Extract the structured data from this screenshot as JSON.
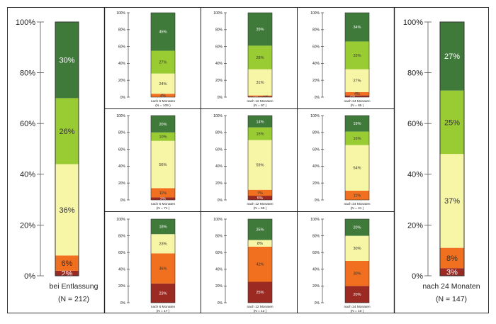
{
  "colors": {
    "dark_green": "#3f7a3b",
    "light_green": "#99cc33",
    "pale_yellow": "#f7f5a6",
    "orange": "#f07020",
    "dark_red": "#9a2a22",
    "frame": "#333333",
    "divider": "#222222",
    "label_dark": "#ffffff",
    "label_light": "#333333"
  },
  "chart_data": [
    {
      "id": "baseline",
      "type": "bar",
      "stacked": true,
      "y_ticks": [
        "0%",
        "20%",
        "40%",
        "60%",
        "80%",
        "100%"
      ],
      "ylim": [
        0,
        100
      ],
      "category_lines": [
        "bei Entlassung",
        "(N = 212)"
      ],
      "segments": [
        {
          "value": 2,
          "label": "2%",
          "color": "dark_red"
        },
        {
          "value": 6,
          "label": "6%",
          "color": "orange"
        },
        {
          "value": 36,
          "label": "36%",
          "color": "pale_yellow"
        },
        {
          "value": 26,
          "label": "26%",
          "color": "light_green"
        },
        {
          "value": 30,
          "label": "30%",
          "color": "dark_green"
        }
      ]
    },
    {
      "id": "r1c1",
      "type": "bar",
      "stacked": true,
      "y_ticks": [
        "0%",
        "20%",
        "40%",
        "60%",
        "80%",
        "100%"
      ],
      "ylim": [
        0,
        100
      ],
      "category_lines": [
        "nach 6 Monaten",
        "(N = 109 )"
      ],
      "segments": [
        {
          "value": 0,
          "label": "",
          "color": "dark_red"
        },
        {
          "value": 4,
          "label": "4%",
          "color": "orange"
        },
        {
          "value": 24,
          "label": "24%",
          "color": "pale_yellow"
        },
        {
          "value": 27,
          "label": "27%",
          "color": "light_green"
        },
        {
          "value": 45,
          "label": "45%",
          "color": "dark_green"
        }
      ]
    },
    {
      "id": "r1c2",
      "type": "bar",
      "stacked": true,
      "y_ticks": [
        "0%",
        "20%",
        "40%",
        "60%",
        "80%",
        "100%"
      ],
      "ylim": [
        0,
        100
      ],
      "category_lines": [
        "nach 12 Monaten",
        "(N = 97 )"
      ],
      "segments": [
        {
          "value": 1,
          "label": "1%",
          "color": "dark_red"
        },
        {
          "value": 1,
          "label": "1%",
          "color": "orange"
        },
        {
          "value": 31,
          "label": "31%",
          "color": "pale_yellow"
        },
        {
          "value": 28,
          "label": "28%",
          "color": "light_green"
        },
        {
          "value": 39,
          "label": "39%",
          "color": "dark_green"
        }
      ]
    },
    {
      "id": "r1c3",
      "type": "bar",
      "stacked": true,
      "y_ticks": [
        "0%",
        "20%",
        "40%",
        "60%",
        "80%",
        "100%"
      ],
      "ylim": [
        0,
        100
      ],
      "category_lines": [
        "nach 24 Monaten",
        "(N = 85 )"
      ],
      "segments": [
        {
          "value": 2,
          "label": "2%",
          "color": "dark_red"
        },
        {
          "value": 4,
          "label": "4%",
          "color": "orange"
        },
        {
          "value": 27,
          "label": "27%",
          "color": "pale_yellow"
        },
        {
          "value": 33,
          "label": "33%",
          "color": "light_green"
        },
        {
          "value": 34,
          "label": "34%",
          "color": "dark_green"
        }
      ]
    },
    {
      "id": "r2c1",
      "type": "bar",
      "stacked": true,
      "y_ticks": [
        "0%",
        "20%",
        "40%",
        "60%",
        "80%",
        "100%"
      ],
      "ylim": [
        0,
        100
      ],
      "category_lines": [
        "nach 6 Monaten",
        "(N = 71 )"
      ],
      "segments": [
        {
          "value": 3,
          "label": "3%",
          "color": "dark_red"
        },
        {
          "value": 11,
          "label": "11%",
          "color": "orange"
        },
        {
          "value": 56,
          "label": "56%",
          "color": "pale_yellow"
        },
        {
          "value": 10,
          "label": "10%",
          "color": "light_green"
        },
        {
          "value": 20,
          "label": "20%",
          "color": "dark_green"
        }
      ]
    },
    {
      "id": "r2c2",
      "type": "bar",
      "stacked": true,
      "y_ticks": [
        "0%",
        "20%",
        "40%",
        "60%",
        "80%",
        "100%"
      ],
      "ylim": [
        0,
        100
      ],
      "category_lines": [
        "nach 12 Monaten",
        "(N = 59 )"
      ],
      "segments": [
        {
          "value": 5,
          "label": "5%",
          "color": "dark_red"
        },
        {
          "value": 7,
          "label": "7%",
          "color": "orange"
        },
        {
          "value": 59,
          "label": "59%",
          "color": "pale_yellow"
        },
        {
          "value": 15,
          "label": "15%",
          "color": "light_green"
        },
        {
          "value": 14,
          "label": "14%",
          "color": "dark_green"
        }
      ]
    },
    {
      "id": "r2c3",
      "type": "bar",
      "stacked": true,
      "y_ticks": [
        "0%",
        "20%",
        "40%",
        "60%",
        "80%",
        "100%"
      ],
      "ylim": [
        0,
        100
      ],
      "category_lines": [
        "nach 24 Monaten",
        "(N = 41 )"
      ],
      "segments": [
        {
          "value": 0,
          "label": "",
          "color": "dark_red"
        },
        {
          "value": 11,
          "label": "11%",
          "color": "orange"
        },
        {
          "value": 54,
          "label": "54%",
          "color": "pale_yellow"
        },
        {
          "value": 16,
          "label": "16%",
          "color": "light_green"
        },
        {
          "value": 19,
          "label": "19%",
          "color": "dark_green"
        }
      ]
    },
    {
      "id": "r3c1",
      "type": "bar",
      "stacked": true,
      "y_ticks": [
        "0%",
        "20%",
        "40%",
        "60%",
        "80%",
        "100%"
      ],
      "ylim": [
        0,
        100
      ],
      "category_lines": [
        "nach 6 Monaten",
        "(N = 17 )"
      ],
      "segments": [
        {
          "value": 23,
          "label": "23%",
          "color": "dark_red"
        },
        {
          "value": 36,
          "label": "36%",
          "color": "orange"
        },
        {
          "value": 23,
          "label": "23%",
          "color": "pale_yellow"
        },
        {
          "value": 0,
          "label": "",
          "color": "light_green"
        },
        {
          "value": 18,
          "label": "18%",
          "color": "dark_green"
        }
      ]
    },
    {
      "id": "r3c2",
      "type": "bar",
      "stacked": true,
      "y_ticks": [
        "0%",
        "20%",
        "40%",
        "60%",
        "80%",
        "100%"
      ],
      "ylim": [
        0,
        100
      ],
      "category_lines": [
        "nach 12 Monaten",
        "(N = 12 )"
      ],
      "segments": [
        {
          "value": 25,
          "label": "25%",
          "color": "dark_red"
        },
        {
          "value": 42,
          "label": "42%",
          "color": "orange"
        },
        {
          "value": 8,
          "label": "8%",
          "color": "pale_yellow"
        },
        {
          "value": 0,
          "label": "",
          "color": "light_green"
        },
        {
          "value": 25,
          "label": "25%",
          "color": "dark_green"
        }
      ]
    },
    {
      "id": "r3c3",
      "type": "bar",
      "stacked": true,
      "y_ticks": [
        "0%",
        "20%",
        "40%",
        "60%",
        "80%",
        "100%"
      ],
      "ylim": [
        0,
        100
      ],
      "category_lines": [
        "nach 24 Monaten",
        "(N = 10 )"
      ],
      "segments": [
        {
          "value": 20,
          "label": "20%",
          "color": "dark_red"
        },
        {
          "value": 30,
          "label": "30%",
          "color": "orange"
        },
        {
          "value": 30,
          "label": "30%",
          "color": "pale_yellow"
        },
        {
          "value": 0,
          "label": "",
          "color": "light_green"
        },
        {
          "value": 20,
          "label": "20%",
          "color": "dark_green"
        }
      ]
    },
    {
      "id": "final",
      "type": "bar",
      "stacked": true,
      "y_ticks": [
        "0%",
        "20%",
        "40%",
        "60%",
        "80%",
        "100%"
      ],
      "ylim": [
        0,
        100
      ],
      "category_lines": [
        "nach 24 Monaten",
        "(N = 147)"
      ],
      "segments": [
        {
          "value": 3,
          "label": "3%",
          "color": "dark_red"
        },
        {
          "value": 8,
          "label": "8%",
          "color": "orange"
        },
        {
          "value": 37,
          "label": "37%",
          "color": "pale_yellow"
        },
        {
          "value": 25,
          "label": "25%",
          "color": "light_green"
        },
        {
          "value": 27,
          "label": "27%",
          "color": "dark_green"
        }
      ]
    }
  ]
}
